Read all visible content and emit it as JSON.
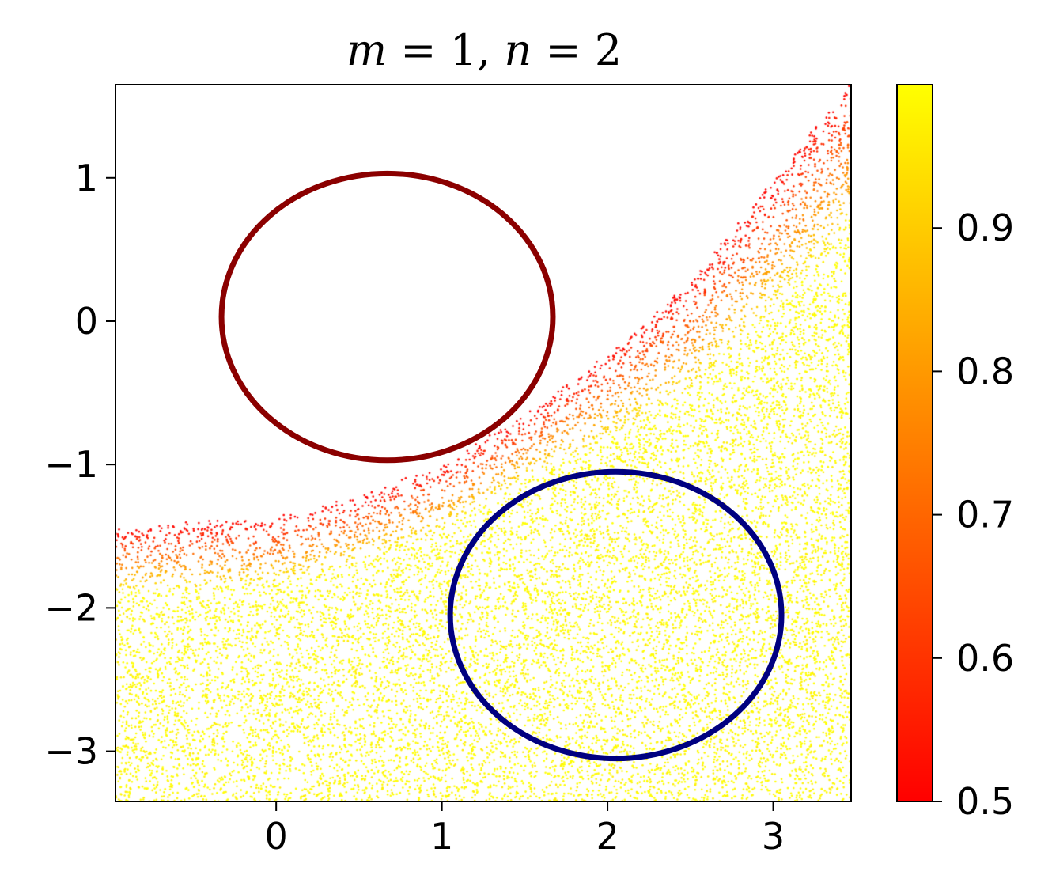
{
  "chart_data": {
    "type": "scatter",
    "title": "m = 1, n = 2",
    "title_parts": {
      "m_var": "m",
      "eq1": " = 1, ",
      "n_var": "n",
      "eq2": " = 2"
    },
    "xlabel": "",
    "ylabel": "",
    "xlim": [
      -0.97,
      3.47
    ],
    "ylim": [
      -3.35,
      1.65
    ],
    "x_ticks": [
      0,
      1,
      2,
      3
    ],
    "x_tick_labels": [
      "0",
      "1",
      "2",
      "3"
    ],
    "y_ticks": [
      1,
      0,
      -1,
      -2,
      -3
    ],
    "y_tick_labels": [
      "1",
      "0",
      "−1",
      "−2",
      "−3"
    ],
    "grid": false,
    "colorbar": {
      "colormap": "autumn",
      "range": [
        0.5,
        1.0
      ],
      "ticks": [
        0.5,
        0.6,
        0.7,
        0.8,
        0.9
      ],
      "tick_labels": [
        "0.5",
        "0.6",
        "0.7",
        "0.8",
        "0.9"
      ],
      "low_color": "#ff0000",
      "high_color": "#ffff00"
    },
    "circles": [
      {
        "name": "upper circle",
        "center": [
          0.67,
          0.03
        ],
        "radius": 1.0,
        "color": "#8b0000"
      },
      {
        "name": "lower circle",
        "center": [
          2.05,
          -2.05
        ],
        "radius": 1.0,
        "color": "#000080"
      }
    ],
    "scatter": {
      "description_of_region": "points lying below a boundary curve; color rises from 0.5 at the boundary to ~1.0 deep inside",
      "boundary_curve_points": [
        [
          -0.97,
          -1.47
        ],
        [
          0.0,
          -1.4
        ],
        [
          0.5,
          -1.25
        ],
        [
          1.0,
          -1.03
        ],
        [
          1.5,
          -0.68
        ],
        [
          2.0,
          -0.25
        ],
        [
          2.5,
          0.25
        ],
        [
          3.0,
          0.95
        ],
        [
          3.47,
          1.65
        ]
      ],
      "color_range": [
        0.5,
        1.0
      ],
      "fade_width": 0.45,
      "point_count": 26000
    }
  }
}
